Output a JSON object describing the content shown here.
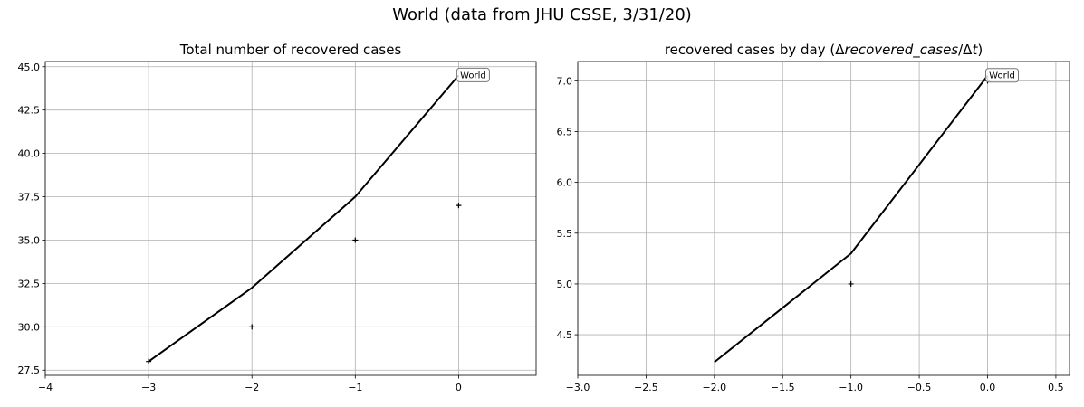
{
  "figure": {
    "title": "World (data from JHU CSSE, 3/31/20)"
  },
  "chart_data": [
    {
      "type": "line",
      "title": "Total number of recovered cases",
      "xlabel": "",
      "ylabel": "",
      "xlim": [
        -4,
        0.75
      ],
      "ylim": [
        27.2,
        45.3
      ],
      "xticks": [
        -4,
        -3,
        -2,
        -1,
        0
      ],
      "xtick_labels": [
        "−4",
        "−3",
        "−2",
        "−1",
        "0"
      ],
      "yticks": [
        27.5,
        30.0,
        32.5,
        35.0,
        37.5,
        40.0,
        42.5,
        45.0
      ],
      "ytick_labels": [
        "27.5",
        "30.0",
        "32.5",
        "35.0",
        "37.5",
        "40.0",
        "42.5",
        "45.0"
      ],
      "grid": true,
      "series": [
        {
          "kind": "line",
          "x": [
            -3,
            -2,
            -1,
            0
          ],
          "y": [
            28.0,
            32.25,
            37.5,
            44.5
          ]
        },
        {
          "kind": "markers",
          "marker": "+",
          "x": [
            -3,
            -2,
            -1,
            0
          ],
          "y": [
            28,
            30,
            35,
            37
          ]
        }
      ],
      "annotations": [
        {
          "text": "World",
          "x": 0,
          "y": 44.5
        }
      ]
    },
    {
      "type": "line",
      "title": "recovered cases by day (Δrecovered_cases/Δt)",
      "title_parts": [
        "recovered cases by day (Δ",
        "recovered_cases",
        "/Δ",
        "t",
        ")"
      ],
      "xlabel": "",
      "ylabel": "",
      "xlim": [
        -3.0,
        0.6
      ],
      "ylim": [
        4.1,
        7.19
      ],
      "xticks": [
        -3.0,
        -2.5,
        -2.0,
        -1.5,
        -1.0,
        -0.5,
        0.0,
        0.5
      ],
      "xtick_labels": [
        "−3.0",
        "−2.5",
        "−2.0",
        "−1.5",
        "−1.0",
        "−0.5",
        "0.0",
        "0.5"
      ],
      "yticks": [
        4.5,
        5.0,
        5.5,
        6.0,
        6.5,
        7.0
      ],
      "ytick_labels": [
        "4.5",
        "5.0",
        "5.5",
        "6.0",
        "6.5",
        "7.0"
      ],
      "grid": true,
      "series": [
        {
          "kind": "line",
          "x": [
            -2,
            -1,
            0
          ],
          "y": [
            4.23,
            5.3,
            7.05
          ]
        },
        {
          "kind": "markers",
          "marker": "+",
          "x": [
            -1,
            0
          ],
          "y": [
            5.0,
            7.0
          ]
        }
      ],
      "annotations": [
        {
          "text": "World",
          "x": 0,
          "y": 7.05
        }
      ]
    }
  ]
}
